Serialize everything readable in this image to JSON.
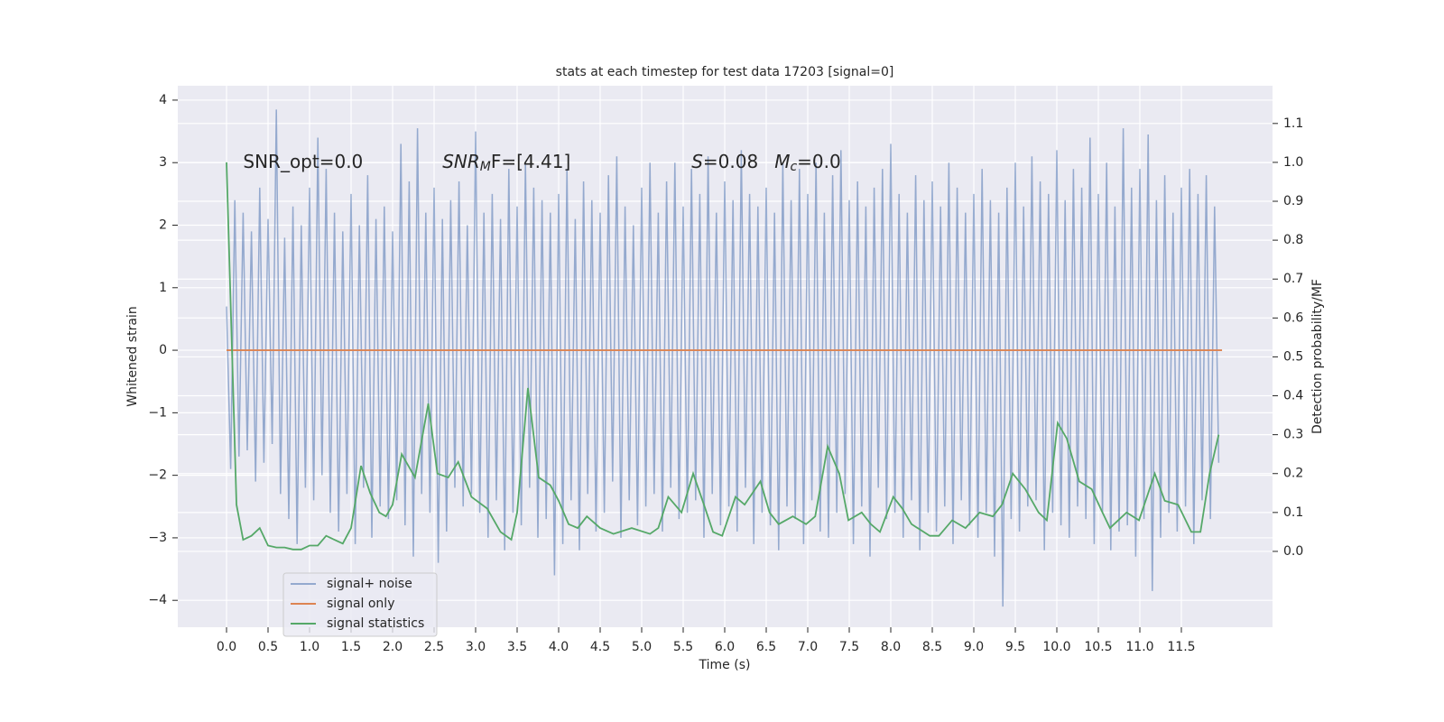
{
  "chart_data": {
    "type": "line",
    "title": "stats at each timestep for test data 17203 [signal=0]",
    "xlabel": "Time (s)",
    "ylabel": "Whitened strain",
    "y2label": "Detection probability/MF",
    "annotations": [
      {
        "parts": [
          "SNR_opt=0.0"
        ],
        "x": 0.2,
        "y": 3.0
      },
      {
        "parts": [
          "SNR",
          "M",
          "F=[4.41]"
        ],
        "x": 2.6,
        "y": 3.0
      },
      {
        "parts": [
          "S",
          "=0.08"
        ],
        "x": 5.6,
        "y": 3.0
      },
      {
        "parts": [
          "M",
          "c",
          "=0.0"
        ],
        "x": 6.6,
        "y": 3.0
      }
    ],
    "xlim": [
      -0.587,
      12.598
    ],
    "ylim": [
      -4.43,
      4.23
    ],
    "y2lim": [
      -0.195,
      1.197
    ],
    "xticks": [
      {
        "value": 0,
        "label": "0.0"
      },
      {
        "value": 0.5,
        "label": "0.5"
      },
      {
        "value": 1,
        "label": "1.0"
      },
      {
        "value": 1.5,
        "label": "1.5"
      },
      {
        "value": 2,
        "label": "2.0"
      },
      {
        "value": 2.5,
        "label": "2.5"
      },
      {
        "value": 3,
        "label": "3.0"
      },
      {
        "value": 3.5,
        "label": "3.5"
      },
      {
        "value": 4,
        "label": "4.0"
      },
      {
        "value": 4.5,
        "label": "4.5"
      },
      {
        "value": 5,
        "label": "5.0"
      },
      {
        "value": 5.5,
        "label": "5.5"
      },
      {
        "value": 6,
        "label": "6.0"
      },
      {
        "value": 6.5,
        "label": "6.5"
      },
      {
        "value": 7,
        "label": "7.0"
      },
      {
        "value": 7.5,
        "label": "7.5"
      },
      {
        "value": 8,
        "label": "8.0"
      },
      {
        "value": 8.5,
        "label": "8.5"
      },
      {
        "value": 9,
        "label": "9.0"
      },
      {
        "value": 9.5,
        "label": "9.5"
      },
      {
        "value": 10,
        "label": "10.0"
      },
      {
        "value": 10.5,
        "label": "10.5"
      },
      {
        "value": 11,
        "label": "11.0"
      },
      {
        "value": 11.5,
        "label": "11.5"
      }
    ],
    "yticks": [
      {
        "value": -4,
        "label": "−4"
      },
      {
        "value": -3,
        "label": "−3"
      },
      {
        "value": -2,
        "label": "−2"
      },
      {
        "value": -1,
        "label": "−1"
      },
      0,
      1,
      2,
      3,
      4
    ],
    "y2ticks": [
      {
        "value": 0,
        "label": "0.0"
      },
      {
        "value": 0.1,
        "label": "0.1"
      },
      {
        "value": 0.2,
        "label": "0.2"
      },
      {
        "value": 0.3,
        "label": "0.3"
      },
      {
        "value": 0.4,
        "label": "0.4"
      },
      {
        "value": 0.5,
        "label": "0.5"
      },
      {
        "value": 0.6,
        "label": "0.6"
      },
      {
        "value": 0.7,
        "label": "0.7"
      },
      {
        "value": 0.8,
        "label": "0.8"
      },
      {
        "value": 0.9,
        "label": "0.9"
      },
      {
        "value": 1,
        "label": "1.0"
      },
      {
        "value": 1.1,
        "label": "1.1"
      }
    ],
    "grid": true,
    "legend_position": "lower left",
    "series": [
      {
        "name": "signal+ noise",
        "color": "#4c72b0",
        "x": [
          0,
          0.05,
          0.1,
          0.15,
          0.2,
          0.25,
          0.3,
          0.35,
          0.4,
          0.45,
          0.5,
          0.55,
          0.6,
          0.65,
          0.7,
          0.75,
          0.8,
          0.85,
          0.9,
          0.95,
          1,
          1.05,
          1.1,
          1.15,
          1.2,
          1.25,
          1.3,
          1.35,
          1.4,
          1.45,
          1.5,
          1.55,
          1.6,
          1.65,
          1.7,
          1.75,
          1.8,
          1.85,
          1.9,
          1.95,
          2,
          2.05,
          2.1,
          2.15,
          2.2,
          2.25,
          2.3,
          2.35,
          2.4,
          2.45,
          2.5,
          2.55,
          2.6,
          2.65,
          2.7,
          2.75,
          2.8,
          2.85,
          2.9,
          2.95,
          3,
          3.05,
          3.1,
          3.15,
          3.2,
          3.25,
          3.3,
          3.35,
          3.4,
          3.45,
          3.5,
          3.55,
          3.6,
          3.65,
          3.7,
          3.75,
          3.8,
          3.85,
          3.9,
          3.95,
          4,
          4.05,
          4.1,
          4.15,
          4.2,
          4.25,
          4.3,
          4.35,
          4.4,
          4.45,
          4.5,
          4.55,
          4.6,
          4.65,
          4.7,
          4.75,
          4.8,
          4.85,
          4.9,
          4.95,
          5,
          5.05,
          5.1,
          5.15,
          5.2,
          5.25,
          5.3,
          5.35,
          5.4,
          5.45,
          5.5,
          5.55,
          5.6,
          5.65,
          5.7,
          5.75,
          5.8,
          5.85,
          5.9,
          5.95,
          6,
          6.05,
          6.1,
          6.15,
          6.2,
          6.25,
          6.3,
          6.35,
          6.4,
          6.45,
          6.5,
          6.55,
          6.6,
          6.65,
          6.7,
          6.75,
          6.8,
          6.85,
          6.9,
          6.95,
          7,
          7.05,
          7.1,
          7.15,
          7.2,
          7.25,
          7.3,
          7.35,
          7.4,
          7.45,
          7.5,
          7.55,
          7.6,
          7.65,
          7.7,
          7.75,
          7.8,
          7.85,
          7.9,
          7.95,
          8,
          8.05,
          8.1,
          8.15,
          8.2,
          8.25,
          8.3,
          8.35,
          8.4,
          8.45,
          8.5,
          8.55,
          8.6,
          8.65,
          8.7,
          8.75,
          8.8,
          8.85,
          8.9,
          8.95,
          9,
          9.05,
          9.1,
          9.15,
          9.2,
          9.25,
          9.3,
          9.35,
          9.4,
          9.45,
          9.5,
          9.55,
          9.6,
          9.65,
          9.7,
          9.75,
          9.8,
          9.85,
          9.9,
          9.95,
          10,
          10.05,
          10.1,
          10.15,
          10.2,
          10.25,
          10.3,
          10.35,
          10.4,
          10.45,
          10.5,
          10.55,
          10.6,
          10.65,
          10.7,
          10.75,
          10.8,
          10.85,
          10.9,
          10.95,
          11,
          11.05,
          11.1,
          11.15,
          11.2,
          11.25,
          11.3,
          11.35,
          11.4,
          11.45,
          11.5,
          11.55,
          11.6,
          11.65,
          11.7,
          11.75,
          11.8,
          11.85,
          11.9,
          11.95
        ],
        "values": [
          0.7,
          -1.9,
          2.4,
          -1.7,
          2.2,
          -1.6,
          1.9,
          -2.1,
          2.6,
          -1.8,
          2.1,
          -1.5,
          3.85,
          -2.3,
          1.8,
          -2.7,
          2.3,
          -3.1,
          2.0,
          -2.2,
          2.6,
          -2.4,
          3.4,
          -2.0,
          2.9,
          -2.6,
          2.2,
          -2.9,
          1.9,
          -2.3,
          2.5,
          -3.1,
          2.0,
          -2.2,
          2.8,
          -3.0,
          2.1,
          -2.5,
          2.3,
          -2.7,
          1.9,
          -2.4,
          3.3,
          -2.8,
          2.7,
          -3.3,
          3.55,
          -2.3,
          2.2,
          -2.6,
          2.6,
          -3.4,
          2.1,
          -2.9,
          2.4,
          -2.2,
          2.7,
          -2.5,
          2.0,
          -2.3,
          3.5,
          -2.6,
          2.2,
          -3.0,
          2.5,
          -2.4,
          2.1,
          -3.2,
          2.9,
          -2.6,
          2.3,
          -2.8,
          3.0,
          -2.2,
          2.6,
          -3.0,
          2.4,
          -2.7,
          2.2,
          -3.6,
          2.5,
          -3.1,
          2.9,
          -2.4,
          2.1,
          -3.2,
          2.7,
          -2.3,
          2.4,
          -2.9,
          2.2,
          -2.6,
          2.8,
          -2.1,
          3.1,
          -3.0,
          2.3,
          -2.4,
          2.0,
          -2.8,
          2.6,
          -2.5,
          3.0,
          -2.3,
          2.2,
          -2.9,
          2.7,
          -2.2,
          3.0,
          -2.7,
          2.3,
          -2.6,
          2.9,
          -2.4,
          2.5,
          -3.0,
          3.1,
          -2.3,
          2.2,
          -2.8,
          2.7,
          -2.5,
          2.4,
          -2.9,
          3.2,
          -2.2,
          2.5,
          -3.1,
          2.3,
          -2.6,
          2.6,
          -2.8,
          2.2,
          -3.2,
          3.0,
          -2.5,
          2.4,
          -2.7,
          2.9,
          -3.1,
          2.5,
          -2.4,
          3.0,
          -2.9,
          2.2,
          -3.0,
          2.8,
          -2.6,
          3.2,
          -2.3,
          2.4,
          -3.1,
          2.7,
          -2.5,
          2.3,
          -3.3,
          2.6,
          -2.2,
          2.9,
          -2.7,
          3.3,
          -2.6,
          2.5,
          -3.0,
          2.2,
          -2.4,
          2.8,
          -3.2,
          2.4,
          -2.6,
          2.7,
          -2.9,
          2.3,
          -2.5,
          3.0,
          -3.1,
          2.6,
          -2.4,
          2.2,
          -2.8,
          2.5,
          -3.0,
          2.9,
          -2.6,
          2.4,
          -3.3,
          2.2,
          -4.1,
          2.6,
          -2.7,
          3.0,
          -2.9,
          2.3,
          -2.5,
          3.1,
          -2.4,
          2.7,
          -3.2,
          2.5,
          -2.6,
          3.2,
          -2.8,
          2.4,
          -3.0,
          2.9,
          -2.5,
          2.6,
          -2.7,
          3.4,
          -3.1,
          2.5,
          -2.6,
          3.0,
          -3.2,
          2.3,
          -2.9,
          3.55,
          -2.8,
          2.6,
          -3.3,
          2.9,
          -2.7,
          3.45,
          -3.85,
          2.4,
          -3.0,
          2.8,
          -2.6,
          2.2,
          -2.9,
          2.6,
          -2.5,
          2.9,
          -3.1,
          2.5,
          -2.4,
          2.8,
          -2.7,
          2.3,
          -1.8
        ]
      },
      {
        "name": "signal only",
        "color": "#dd8452",
        "x": [
          0,
          11.99
        ],
        "values": [
          0,
          0
        ]
      },
      {
        "name": "signal statistics",
        "color": "#55a868",
        "axis": "y2",
        "x": [
          0,
          0.12,
          0.2,
          0.3,
          0.4,
          0.5,
          0.6,
          0.7,
          0.8,
          0.9,
          1.0,
          1.1,
          1.2,
          1.3,
          1.4,
          1.5,
          1.62,
          1.73,
          1.84,
          1.92,
          2.0,
          2.11,
          2.27,
          2.43,
          2.54,
          2.67,
          2.79,
          2.95,
          3.14,
          3.3,
          3.43,
          3.5,
          3.63,
          3.76,
          3.9,
          4.0,
          4.12,
          4.23,
          4.34,
          4.5,
          4.66,
          4.88,
          5.1,
          5.2,
          5.32,
          5.48,
          5.62,
          5.75,
          5.86,
          5.97,
          6.13,
          6.24,
          6.43,
          6.54,
          6.65,
          6.82,
          6.98,
          7.09,
          7.24,
          7.38,
          7.49,
          7.65,
          7.76,
          7.87,
          8.03,
          8.14,
          8.25,
          8.47,
          8.58,
          8.74,
          8.9,
          9.07,
          9.23,
          9.34,
          9.47,
          9.62,
          9.78,
          9.88,
          10.01,
          10.12,
          10.27,
          10.42,
          10.55,
          10.64,
          10.84,
          10.99,
          11.18,
          11.3,
          11.46,
          11.62,
          11.73,
          11.84,
          11.95
        ],
        "values": [
          1.0,
          0.12,
          0.03,
          0.04,
          0.06,
          0.015,
          0.01,
          0.01,
          0.005,
          0.005,
          0.015,
          0.015,
          0.04,
          0.03,
          0.02,
          0.06,
          0.22,
          0.15,
          0.1,
          0.09,
          0.12,
          0.25,
          0.19,
          0.38,
          0.2,
          0.19,
          0.23,
          0.14,
          0.11,
          0.05,
          0.03,
          0.1,
          0.42,
          0.19,
          0.17,
          0.13,
          0.07,
          0.06,
          0.09,
          0.06,
          0.045,
          0.06,
          0.045,
          0.06,
          0.14,
          0.1,
          0.2,
          0.12,
          0.05,
          0.04,
          0.14,
          0.12,
          0.18,
          0.1,
          0.07,
          0.09,
          0.07,
          0.09,
          0.27,
          0.2,
          0.08,
          0.1,
          0.07,
          0.05,
          0.14,
          0.11,
          0.07,
          0.04,
          0.04,
          0.08,
          0.06,
          0.1,
          0.09,
          0.12,
          0.2,
          0.16,
          0.1,
          0.08,
          0.33,
          0.29,
          0.18,
          0.16,
          0.1,
          0.06,
          0.1,
          0.08,
          0.2,
          0.13,
          0.12,
          0.05,
          0.05,
          0.2,
          0.3
        ]
      }
    ]
  }
}
